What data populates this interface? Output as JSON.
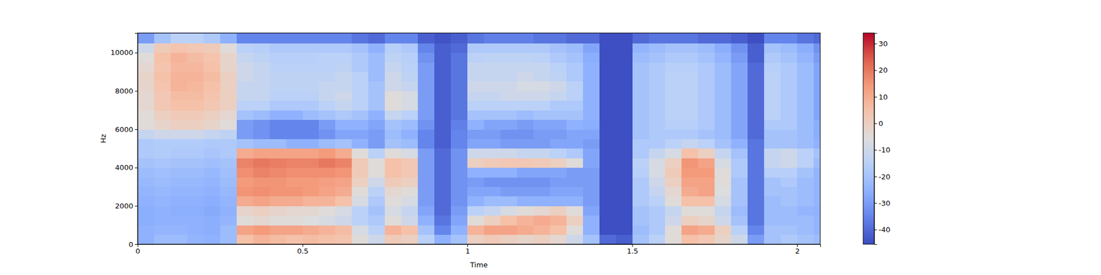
{
  "chart_data": {
    "type": "heatmap",
    "xlabel": "Time",
    "ylabel": "Hz",
    "color": "coolwarm",
    "xlim": [
      0,
      2.07
    ],
    "ylim": [
      0,
      11025
    ],
    "xticks": [
      0,
      0.5,
      1,
      1.5,
      2
    ],
    "yticks": [
      0,
      2000,
      4000,
      6000,
      8000,
      10000
    ],
    "x_bins": [
      0,
      0.05,
      0.1,
      0.15,
      0.2,
      0.25,
      0.3,
      0.35,
      0.4,
      0.45,
      0.5,
      0.55,
      0.6,
      0.65,
      0.7,
      0.75,
      0.8,
      0.85,
      0.9,
      0.95,
      1.0,
      1.05,
      1.1,
      1.15,
      1.2,
      1.25,
      1.3,
      1.35,
      1.4,
      1.45,
      1.5,
      1.55,
      1.6,
      1.65,
      1.7,
      1.75,
      1.8,
      1.85,
      1.9,
      1.95,
      2.0,
      2.05,
      2.07
    ],
    "y_bins": [
      0,
      500,
      1000,
      1500,
      2000,
      2500,
      3000,
      3500,
      4000,
      4500,
      5000,
      5500,
      6000,
      6500,
      7000,
      7500,
      8000,
      8500,
      9000,
      9500,
      10000,
      10500,
      11000,
      11025
    ],
    "cells": [
      [
        -25,
        -22,
        -22,
        -24,
        -25,
        -22,
        5,
        8,
        6,
        5,
        6,
        5,
        4,
        -5,
        -10,
        2,
        0,
        -15,
        -25,
        -20,
        0,
        2,
        0,
        -2,
        0,
        -3,
        -10,
        -20,
        -40,
        -42,
        -20,
        -15,
        -5,
        5,
        3,
        -2,
        -10,
        -30,
        -20,
        -18,
        -20,
        -22
      ],
      [
        -25,
        -24,
        -24,
        -25,
        -26,
        -22,
        12,
        14,
        12,
        12,
        10,
        8,
        6,
        -8,
        -15,
        8,
        5,
        -20,
        -35,
        -25,
        8,
        12,
        12,
        10,
        8,
        5,
        -5,
        -25,
        -45,
        -45,
        -22,
        -18,
        -5,
        12,
        10,
        0,
        -15,
        -35,
        -20,
        -20,
        -22,
        -24
      ],
      [
        -26,
        -25,
        -25,
        -25,
        -26,
        -24,
        -5,
        -3,
        -5,
        -5,
        -6,
        -8,
        -10,
        -15,
        -18,
        -5,
        -10,
        -25,
        -38,
        -28,
        -5,
        0,
        5,
        8,
        10,
        8,
        0,
        -25,
        -45,
        -45,
        -20,
        -18,
        -10,
        0,
        -2,
        -10,
        -20,
        -38,
        -22,
        -22,
        -22,
        -24
      ],
      [
        -26,
        -25,
        -26,
        -26,
        -27,
        -25,
        -2,
        0,
        -2,
        -3,
        -3,
        -5,
        -8,
        -15,
        -20,
        -8,
        -12,
        -28,
        -40,
        -30,
        -15,
        -12,
        -8,
        -5,
        -3,
        0,
        -5,
        -28,
        -45,
        -45,
        -20,
        -18,
        -12,
        -5,
        -5,
        -12,
        -22,
        -38,
        -22,
        -22,
        -24,
        -25
      ],
      [
        -25,
        -24,
        -25,
        -25,
        -26,
        -24,
        10,
        12,
        10,
        10,
        8,
        8,
        5,
        -8,
        -18,
        -5,
        -8,
        -30,
        -40,
        -32,
        -25,
        -22,
        -22,
        -25,
        -25,
        -25,
        -25,
        -30,
        -45,
        -45,
        -18,
        -15,
        -5,
        5,
        5,
        -8,
        -20,
        -38,
        -22,
        -20,
        -22,
        -24
      ],
      [
        -24,
        -23,
        -24,
        -24,
        -25,
        -23,
        15,
        16,
        15,
        15,
        14,
        12,
        10,
        -5,
        -15,
        -3,
        -5,
        -30,
        -40,
        -32,
        -28,
        -28,
        -30,
        -30,
        -30,
        -28,
        -28,
        -30,
        -45,
        -45,
        -18,
        -12,
        -3,
        10,
        12,
        -6,
        -20,
        -38,
        -20,
        -20,
        -22,
        -24
      ],
      [
        -23,
        -22,
        -23,
        -23,
        -24,
        -22,
        14,
        15,
        15,
        14,
        14,
        13,
        12,
        0,
        -10,
        2,
        0,
        -30,
        -40,
        -32,
        -30,
        -32,
        -32,
        -32,
        -32,
        -30,
        -30,
        -30,
        -45,
        -45,
        -18,
        -10,
        0,
        12,
        12,
        -5,
        -20,
        -38,
        -20,
        -18,
        -22,
        -24
      ],
      [
        -22,
        -21,
        -22,
        -22,
        -23,
        -21,
        16,
        18,
        17,
        16,
        16,
        16,
        15,
        2,
        -5,
        5,
        3,
        -30,
        -40,
        -32,
        -25,
        -25,
        -25,
        -28,
        -28,
        -28,
        -30,
        -30,
        -45,
        -45,
        -16,
        -8,
        2,
        14,
        14,
        -5,
        -18,
        -38,
        -16,
        -16,
        -20,
        -24
      ],
      [
        -20,
        -19,
        -20,
        -20,
        -21,
        -20,
        18,
        20,
        19,
        18,
        18,
        20,
        18,
        2,
        -5,
        5,
        3,
        -30,
        -40,
        -32,
        0,
        2,
        3,
        3,
        2,
        0,
        -5,
        -28,
        -45,
        -45,
        -15,
        -8,
        0,
        15,
        12,
        -8,
        -18,
        -38,
        -12,
        -10,
        -15,
        -22
      ],
      [
        -18,
        -17,
        -18,
        -18,
        -19,
        -18,
        10,
        12,
        12,
        12,
        12,
        14,
        10,
        -5,
        -15,
        -5,
        -8,
        -30,
        -40,
        -32,
        -10,
        -10,
        -10,
        -12,
        -12,
        -15,
        -18,
        -28,
        -45,
        -45,
        -18,
        -12,
        -8,
        5,
        0,
        -12,
        -20,
        -38,
        -12,
        -10,
        -15,
        -20
      ],
      [
        -18,
        -17,
        -17,
        -17,
        -18,
        -18,
        -20,
        -22,
        -22,
        -25,
        -25,
        -22,
        -20,
        -25,
        -30,
        -20,
        -22,
        -35,
        -42,
        -35,
        -28,
        -28,
        -30,
        -30,
        -30,
        -28,
        -28,
        -30,
        -45,
        -45,
        -18,
        -18,
        -15,
        -12,
        -15,
        -20,
        -25,
        -38,
        -20,
        -20,
        -22,
        -25
      ],
      [
        -12,
        -10,
        -10,
        -10,
        -12,
        -14,
        -30,
        -32,
        -35,
        -35,
        -35,
        -32,
        -28,
        -28,
        -30,
        -22,
        -25,
        -35,
        -42,
        -35,
        -30,
        -30,
        -32,
        -32,
        -30,
        -30,
        -28,
        -28,
        -45,
        -45,
        -20,
        -18,
        -18,
        -18,
        -20,
        -22,
        -28,
        -40,
        -20,
        -20,
        -22,
        -26
      ],
      [
        -5,
        -2,
        0,
        0,
        -2,
        -5,
        -30,
        -32,
        -35,
        -35,
        -35,
        -30,
        -25,
        -25,
        -28,
        -20,
        -22,
        -32,
        -42,
        -36,
        -25,
        -28,
        -28,
        -30,
        -28,
        -28,
        -25,
        -26,
        -45,
        -45,
        -20,
        -18,
        -16,
        -16,
        -18,
        -22,
        -28,
        -40,
        -18,
        -18,
        -22,
        -26
      ],
      [
        -5,
        0,
        2,
        2,
        0,
        -3,
        -20,
        -22,
        -25,
        -25,
        -22,
        -20,
        -18,
        -20,
        -25,
        -12,
        -15,
        -30,
        -42,
        -38,
        -20,
        -20,
        -20,
        -22,
        -20,
        -20,
        -20,
        -25,
        -45,
        -45,
        -20,
        -18,
        -15,
        -15,
        -18,
        -22,
        -28,
        -40,
        -15,
        -18,
        -22,
        -28
      ],
      [
        -3,
        3,
        5,
        5,
        3,
        0,
        -15,
        -15,
        -18,
        -18,
        -18,
        -15,
        -12,
        -15,
        -20,
        -5,
        -8,
        -30,
        -42,
        -38,
        -15,
        -15,
        -15,
        -15,
        -15,
        -18,
        -18,
        -25,
        -45,
        -45,
        -20,
        -18,
        -15,
        -15,
        -18,
        -22,
        -28,
        -40,
        -15,
        -18,
        -22,
        -28
      ],
      [
        -3,
        3,
        6,
        6,
        4,
        0,
        -12,
        -12,
        -15,
        -15,
        -15,
        -12,
        -10,
        -15,
        -20,
        -5,
        -8,
        -30,
        -42,
        -38,
        -12,
        -12,
        -10,
        -10,
        -10,
        -12,
        -15,
        -25,
        -45,
        -45,
        -20,
        -18,
        -15,
        -15,
        -18,
        -22,
        -28,
        -40,
        -15,
        -18,
        -22,
        -28
      ],
      [
        -2,
        4,
        8,
        7,
        5,
        0,
        -12,
        -12,
        -14,
        -14,
        -14,
        -12,
        -12,
        -15,
        -20,
        -10,
        -12,
        -30,
        -42,
        -38,
        -10,
        -10,
        -10,
        -8,
        -8,
        -10,
        -15,
        -25,
        -45,
        -45,
        -20,
        -18,
        -15,
        -15,
        -18,
        -22,
        -28,
        -40,
        -15,
        -18,
        -22,
        -28
      ],
      [
        -2,
        5,
        8,
        8,
        6,
        0,
        -10,
        -12,
        -14,
        -14,
        -14,
        -14,
        -12,
        -15,
        -22,
        -10,
        -14,
        -30,
        -42,
        -38,
        -12,
        -12,
        -12,
        -10,
        -12,
        -14,
        -18,
        -25,
        -45,
        -45,
        -20,
        -18,
        -15,
        -15,
        -18,
        -22,
        -28,
        -40,
        -15,
        -18,
        -22,
        -28
      ],
      [
        -3,
        4,
        7,
        7,
        5,
        -2,
        -10,
        -12,
        -15,
        -15,
        -15,
        -15,
        -14,
        -18,
        -22,
        -12,
        -15,
        -30,
        -42,
        -38,
        -12,
        -12,
        -12,
        -12,
        -12,
        -15,
        -18,
        -25,
        -45,
        -45,
        -20,
        -18,
        -16,
        -16,
        -18,
        -22,
        -28,
        -40,
        -16,
        -18,
        -22,
        -28
      ],
      [
        -5,
        5,
        8,
        6,
        4,
        -2,
        -12,
        -14,
        -16,
        -16,
        -16,
        -15,
        -15,
        -18,
        -22,
        -14,
        -16,
        -32,
        -42,
        -38,
        -15,
        -14,
        -14,
        -14,
        -15,
        -18,
        -20,
        -26,
        -45,
        -45,
        -22,
        -20,
        -18,
        -18,
        -20,
        -24,
        -30,
        -42,
        -18,
        -20,
        -24,
        -30
      ],
      [
        -10,
        2,
        4,
        3,
        2,
        -5,
        -15,
        -16,
        -18,
        -18,
        -18,
        -18,
        -18,
        -20,
        -25,
        -16,
        -18,
        -35,
        -42,
        -40,
        -18,
        -18,
        -18,
        -18,
        -18,
        -20,
        -22,
        -28,
        -45,
        -45,
        -24,
        -22,
        -20,
        -20,
        -22,
        -26,
        -32,
        -42,
        -20,
        -22,
        -26,
        -32
      ],
      [
        -30,
        -20,
        -15,
        -15,
        -18,
        -25,
        -35,
        -35,
        -35,
        -35,
        -35,
        -35,
        -35,
        -38,
        -40,
        -35,
        -35,
        -42,
        -44,
        -42,
        -38,
        -36,
        -36,
        -36,
        -38,
        -38,
        -40,
        -40,
        -45,
        -45,
        -40,
        -38,
        -38,
        -38,
        -40,
        -40,
        -42,
        -45,
        -35,
        -35,
        -38,
        -40
      ],
      [
        -45,
        -45,
        -45,
        -45,
        -45,
        -45,
        -45,
        -45,
        -45,
        -45,
        -45,
        -45,
        -45,
        -45,
        -45,
        -45,
        -45,
        -45,
        -45,
        -45,
        -45,
        -45,
        -45,
        -45,
        -45,
        -45,
        -45,
        -45,
        -45,
        -45,
        -45,
        -45,
        -45,
        -45,
        -45,
        -45,
        -45,
        -45,
        -45,
        -45,
        -45,
        -45
      ]
    ],
    "colorbar": {
      "range": [
        -45.5,
        34
      ],
      "ticks": [
        -40,
        -30,
        -20,
        -10,
        0,
        10,
        20,
        30
      ]
    }
  }
}
